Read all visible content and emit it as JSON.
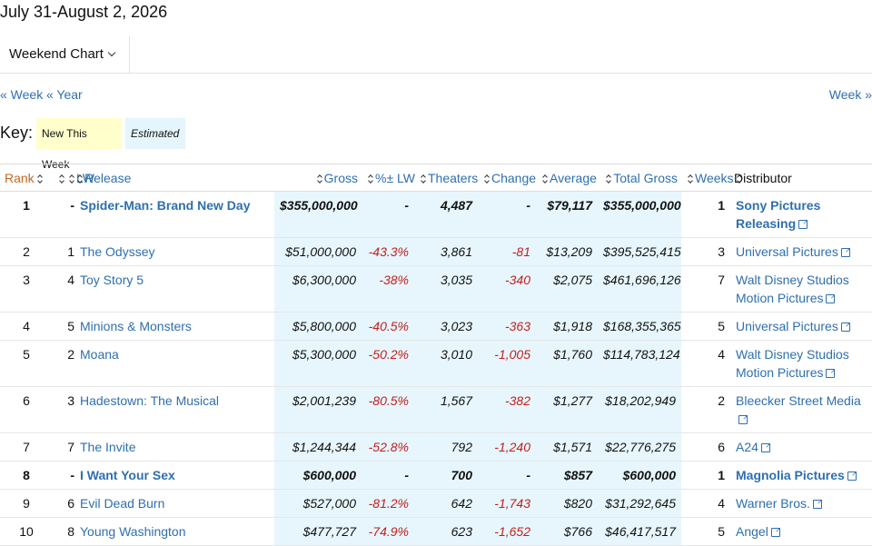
{
  "header": {
    "title": "July 31-August 2, 2026"
  },
  "tabs": [
    "Weekend Chart"
  ],
  "nav": {
    "prev_week": "« Week",
    "prev_year": "« Year",
    "next_week": "Week »"
  },
  "key": {
    "label": "Key:",
    "new": "New This Week",
    "estimated": "Estimated"
  },
  "table": {
    "columns": [
      "Rank",
      "LW",
      "Release",
      "Gross",
      "%± LW",
      "Theaters",
      "Change",
      "Average",
      "Total Gross",
      "Weeks",
      "Distributor"
    ],
    "rows": [
      {
        "rank": "1",
        "lw": "-",
        "release": "Spider-Man: Brand New Day",
        "gross": "$355,000,000",
        "pct_lw": "-",
        "theaters": "4,487",
        "change": "-",
        "average": "$79,117",
        "total_gross": "$355,000,000",
        "weeks": "1",
        "distributor": "Sony Pictures Releasing",
        "new": true
      },
      {
        "rank": "2",
        "lw": "1",
        "release": "The Odyssey",
        "gross": "$51,000,000",
        "pct_lw": "-43.3%",
        "theaters": "3,861",
        "change": "-81",
        "average": "$13,209",
        "total_gross": "$395,525,415",
        "weeks": "3",
        "distributor": "Universal Pictures",
        "new": false
      },
      {
        "rank": "3",
        "lw": "4",
        "release": "Toy Story 5",
        "gross": "$6,300,000",
        "pct_lw": "-38%",
        "theaters": "3,035",
        "change": "-340",
        "average": "$2,075",
        "total_gross": "$461,696,126",
        "weeks": "7",
        "distributor": "Walt Disney Studios Motion Pictures",
        "new": false
      },
      {
        "rank": "4",
        "lw": "5",
        "release": "Minions & Monsters",
        "gross": "$5,800,000",
        "pct_lw": "-40.5%",
        "theaters": "3,023",
        "change": "-363",
        "average": "$1,918",
        "total_gross": "$168,355,365",
        "weeks": "5",
        "distributor": "Universal Pictures",
        "new": false
      },
      {
        "rank": "5",
        "lw": "2",
        "release": "Moana",
        "gross": "$5,300,000",
        "pct_lw": "-50.2%",
        "theaters": "3,010",
        "change": "-1,005",
        "average": "$1,760",
        "total_gross": "$114,783,124",
        "weeks": "4",
        "distributor": "Walt Disney Studios Motion Pictures",
        "new": false
      },
      {
        "rank": "6",
        "lw": "3",
        "release": "Hadestown: The Musical",
        "gross": "$2,001,239",
        "pct_lw": "-80.5%",
        "theaters": "1,567",
        "change": "-382",
        "average": "$1,277",
        "total_gross": "$18,202,949",
        "weeks": "2",
        "distributor": "Bleecker Street Media",
        "new": false
      },
      {
        "rank": "7",
        "lw": "7",
        "release": "The Invite",
        "gross": "$1,244,344",
        "pct_lw": "-52.8%",
        "theaters": "792",
        "change": "-1,240",
        "average": "$1,571",
        "total_gross": "$22,776,275",
        "weeks": "6",
        "distributor": "A24",
        "new": false
      },
      {
        "rank": "8",
        "lw": "-",
        "release": "I Want Your Sex",
        "gross": "$600,000",
        "pct_lw": "-",
        "theaters": "700",
        "change": "-",
        "average": "$857",
        "total_gross": "$600,000",
        "weeks": "1",
        "distributor": "Magnolia Pictures",
        "new": true
      },
      {
        "rank": "9",
        "lw": "6",
        "release": "Evil Dead Burn",
        "gross": "$527,000",
        "pct_lw": "-81.2%",
        "theaters": "642",
        "change": "-1,743",
        "average": "$820",
        "total_gross": "$31,292,645",
        "weeks": "4",
        "distributor": "Warner Bros.",
        "new": false
      },
      {
        "rank": "10",
        "lw": "8",
        "release": "Young Washington",
        "gross": "$477,727",
        "pct_lw": "-74.9%",
        "theaters": "623",
        "change": "-1,652",
        "average": "$766",
        "total_gross": "$46,417,517",
        "weeks": "5",
        "distributor": "Angel",
        "new": false
      }
    ]
  }
}
